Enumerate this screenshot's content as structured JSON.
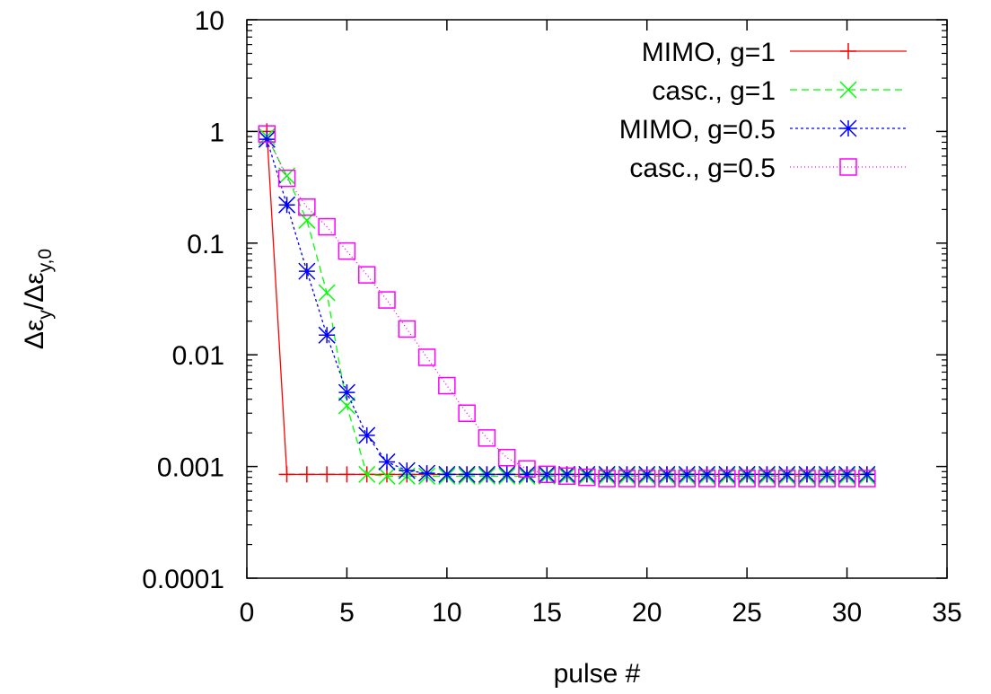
{
  "chart_data": {
    "type": "line",
    "title": "",
    "xlabel": "pulse #",
    "ylabel_parts": [
      "Δε",
      "y",
      "/Δε",
      "y,0"
    ],
    "xlim": [
      0,
      35
    ],
    "ylim": [
      0.0001,
      10
    ],
    "yscale": "log",
    "grid": false,
    "legend_position": "top-right",
    "x_ticks": [
      0,
      5,
      10,
      15,
      20,
      25,
      30,
      35
    ],
    "x_tick_labels": [
      "0",
      "5",
      "10",
      "15",
      "20",
      "25",
      "30",
      "35"
    ],
    "y_ticks": [
      0.0001,
      0.001,
      0.01,
      0.1,
      1,
      10
    ],
    "y_tick_labels": [
      "0.0001",
      "0.001",
      "0.01",
      "0.1",
      "1",
      "10"
    ],
    "series": [
      {
        "name": "MIMO, g=1",
        "color": "#ff0000",
        "marker": "plus",
        "dash": "",
        "x": [
          1,
          2,
          3,
          4,
          5,
          6,
          7,
          8,
          9,
          10,
          11,
          12,
          13,
          14,
          15,
          16,
          17,
          18,
          19,
          20,
          21,
          22,
          23,
          24,
          25,
          26,
          27,
          28,
          29,
          30,
          31
        ],
        "y": [
          1,
          0.00085,
          0.00085,
          0.00085,
          0.00085,
          0.00085,
          0.00085,
          0.00085,
          0.00085,
          0.00085,
          0.00085,
          0.00085,
          0.00085,
          0.00085,
          0.00085,
          0.00085,
          0.00085,
          0.00085,
          0.00085,
          0.00085,
          0.00085,
          0.00085,
          0.00085,
          0.00085,
          0.00085,
          0.00085,
          0.00085,
          0.00085,
          0.00085,
          0.00085,
          0.00085
        ]
      },
      {
        "name": "casc., g=1",
        "color": "#00ff00",
        "marker": "cross",
        "dash": "8,5",
        "x": [
          1,
          2,
          3,
          4,
          5,
          6,
          7,
          8,
          9,
          10,
          11,
          12,
          13,
          14,
          15,
          16,
          17,
          18,
          19,
          20,
          21,
          22,
          23,
          24,
          25,
          26,
          27,
          28,
          29,
          30,
          31
        ],
        "y": [
          0.9,
          0.4,
          0.16,
          0.036,
          0.0035,
          0.00085,
          0.00082,
          0.00082,
          0.00082,
          0.00082,
          0.00082,
          0.00082,
          0.00082,
          0.00082,
          0.00082,
          0.00082,
          0.00082,
          0.00082,
          0.00082,
          0.00082,
          0.00082,
          0.00082,
          0.00082,
          0.00082,
          0.00082,
          0.00082,
          0.00082,
          0.00082,
          0.00082,
          0.00082,
          0.00082
        ]
      },
      {
        "name": "MIMO, g=0.5",
        "color": "#0000ff",
        "marker": "star",
        "dash": "3,3",
        "x": [
          1,
          2,
          3,
          4,
          5,
          6,
          7,
          8,
          9,
          10,
          11,
          12,
          13,
          14,
          15,
          16,
          17,
          18,
          19,
          20,
          21,
          22,
          23,
          24,
          25,
          26,
          27,
          28,
          29,
          30,
          31
        ],
        "y": [
          0.85,
          0.22,
          0.056,
          0.015,
          0.0046,
          0.0019,
          0.0011,
          0.00092,
          0.00087,
          0.00085,
          0.00085,
          0.00085,
          0.00085,
          0.00085,
          0.00085,
          0.00085,
          0.00085,
          0.00085,
          0.00085,
          0.00085,
          0.00085,
          0.00085,
          0.00085,
          0.00085,
          0.00085,
          0.00085,
          0.00085,
          0.00085,
          0.00085,
          0.00085,
          0.00085
        ]
      },
      {
        "name": "casc., g=0.5",
        "color": "#ff00ff",
        "marker": "square",
        "dash": "1,3",
        "x": [
          1,
          2,
          3,
          4,
          5,
          6,
          7,
          8,
          9,
          10,
          11,
          12,
          13,
          14,
          15,
          16,
          17,
          18,
          19,
          20,
          21,
          22,
          23,
          24,
          25,
          26,
          27,
          28,
          29,
          30,
          31
        ],
        "y": [
          0.95,
          0.38,
          0.21,
          0.14,
          0.085,
          0.052,
          0.031,
          0.017,
          0.0095,
          0.0053,
          0.003,
          0.0018,
          0.0012,
          0.00095,
          0.00085,
          0.00082,
          0.0008,
          0.00078,
          0.00078,
          0.00078,
          0.00078,
          0.00078,
          0.00078,
          0.00078,
          0.00078,
          0.00078,
          0.00078,
          0.00078,
          0.00078,
          0.00078,
          0.00078
        ]
      }
    ]
  }
}
